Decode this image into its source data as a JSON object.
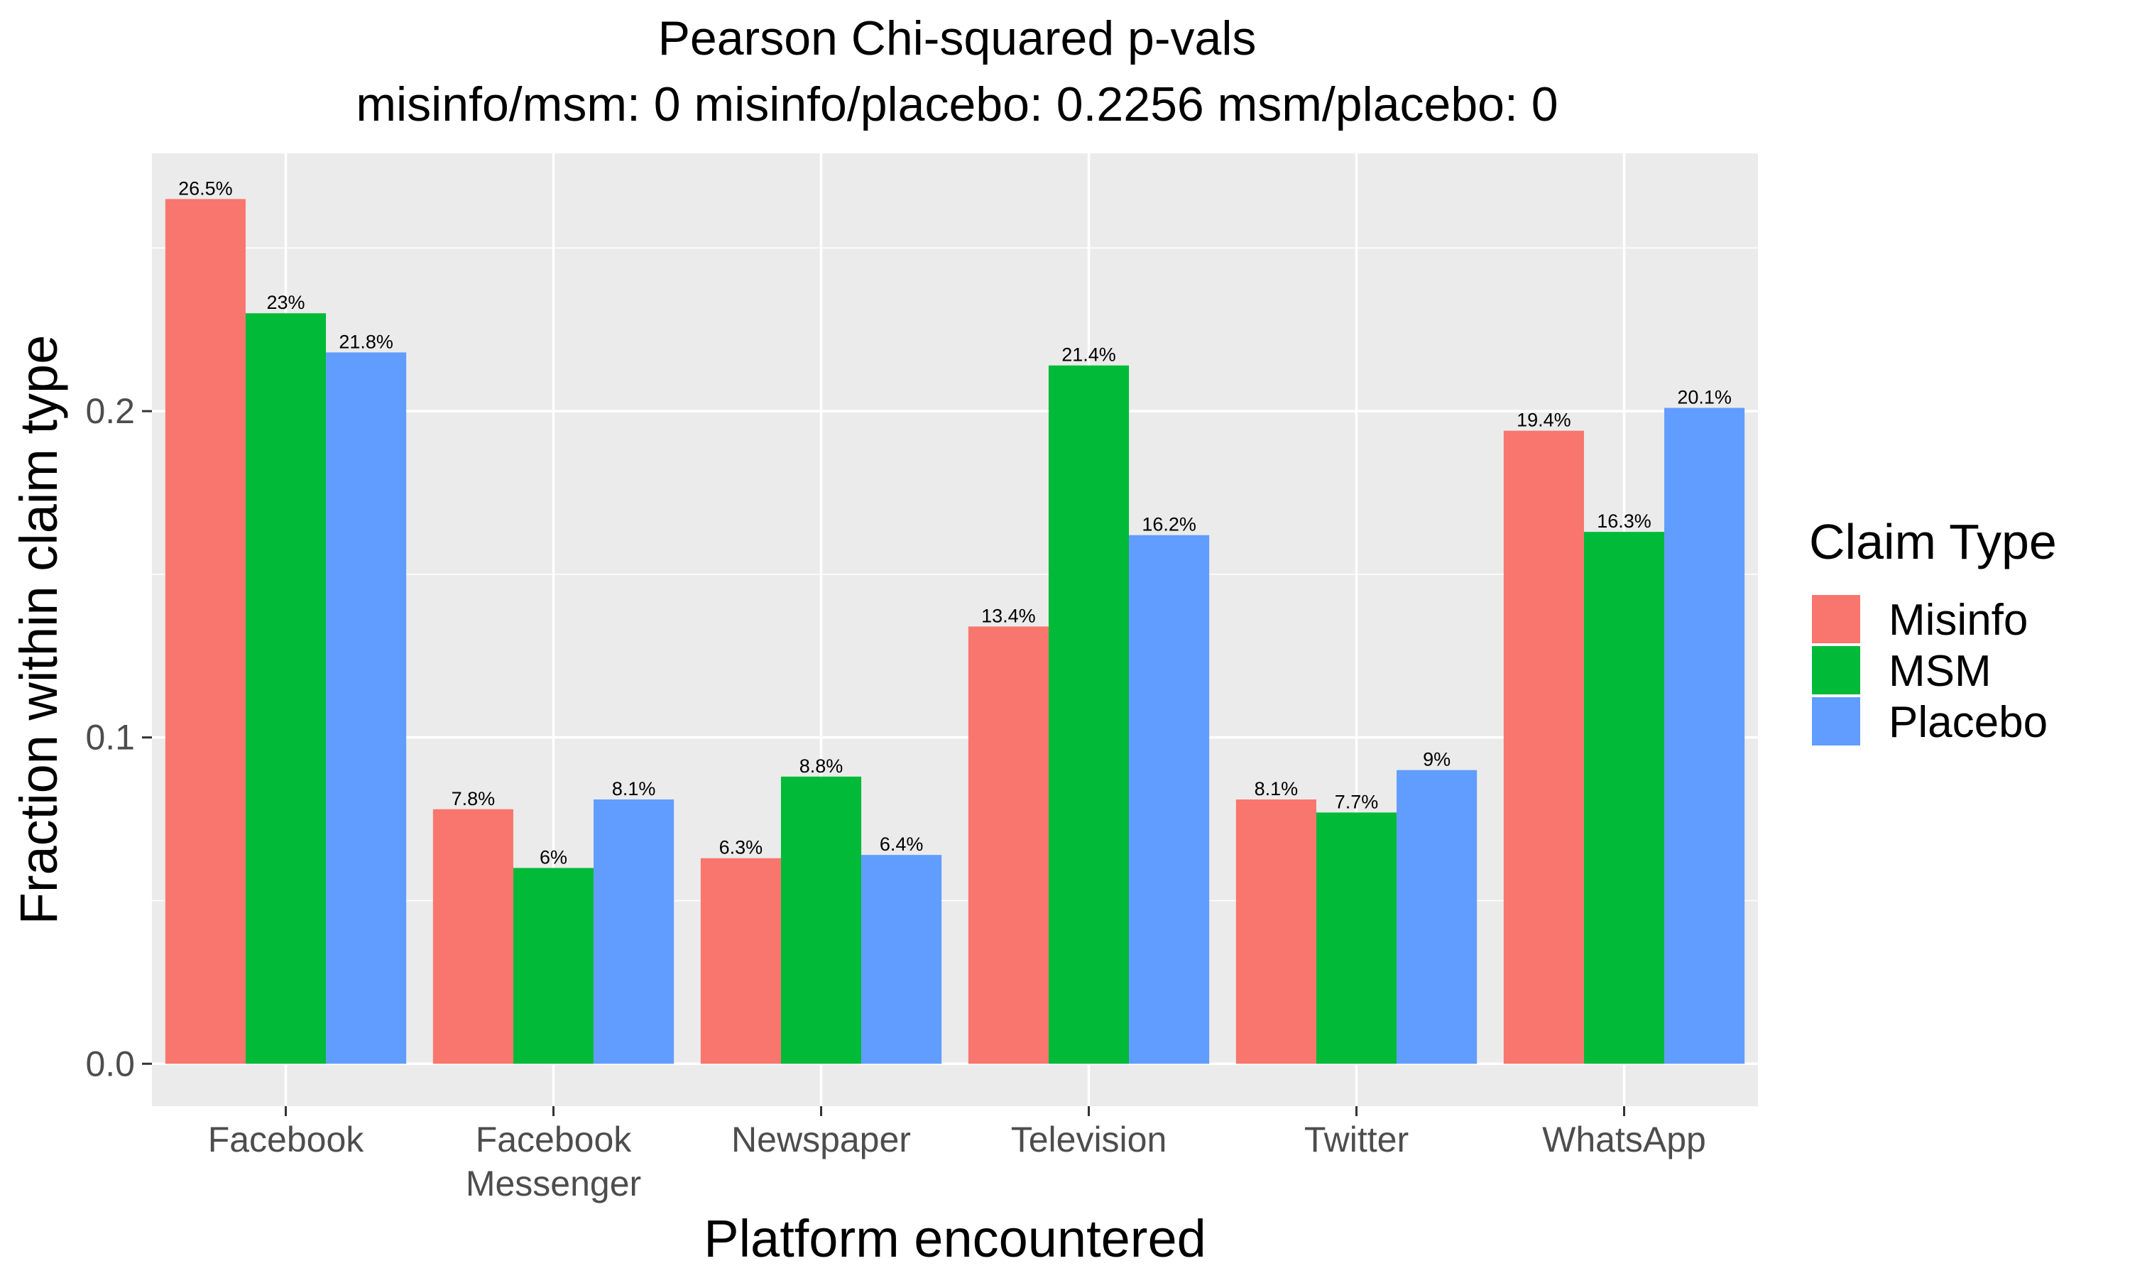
{
  "chart_data": {
    "type": "bar",
    "title": "Pearson Chi-squared p-vals",
    "subtitle": "misinfo/msm: 0 misinfo/placebo: 0.2256 msm/placebo: 0",
    "xlabel": "Platform encountered",
    "ylabel": "Fraction within claim type",
    "categories": [
      [
        "Facebook"
      ],
      [
        "Facebook",
        "Messenger"
      ],
      [
        "Newspaper"
      ],
      [
        "Television"
      ],
      [
        "Twitter"
      ],
      [
        "WhatsApp"
      ]
    ],
    "ylim": [
      -0.013,
      0.279
    ],
    "yticks": [
      0.0,
      0.1,
      0.2
    ],
    "ytick_labels": [
      "0.0",
      "0.1",
      "0.2"
    ],
    "yminor": [
      0.05,
      0.15,
      0.25
    ],
    "grid": true,
    "legend": {
      "title": "Claim Type",
      "position": "right"
    },
    "series": [
      {
        "name": "Misinfo",
        "color": "#F8766D",
        "values": [
          0.265,
          0.078,
          0.063,
          0.134,
          0.081,
          0.194
        ],
        "labels": [
          "26.5%",
          "7.8%",
          "6.3%",
          "13.4%",
          "8.1%",
          "19.4%"
        ]
      },
      {
        "name": "MSM",
        "color": "#00BA38",
        "values": [
          0.23,
          0.06,
          0.088,
          0.214,
          0.077,
          0.163
        ],
        "labels": [
          "23%",
          "6%",
          "8.8%",
          "21.4%",
          "7.7%",
          "16.3%"
        ]
      },
      {
        "name": "Placebo",
        "color": "#619CFF",
        "values": [
          0.218,
          0.081,
          0.064,
          0.162,
          0.09,
          0.201
        ],
        "labels": [
          "21.8%",
          "8.1%",
          "6.4%",
          "16.2%",
          "9%",
          "20.1%"
        ]
      }
    ]
  }
}
